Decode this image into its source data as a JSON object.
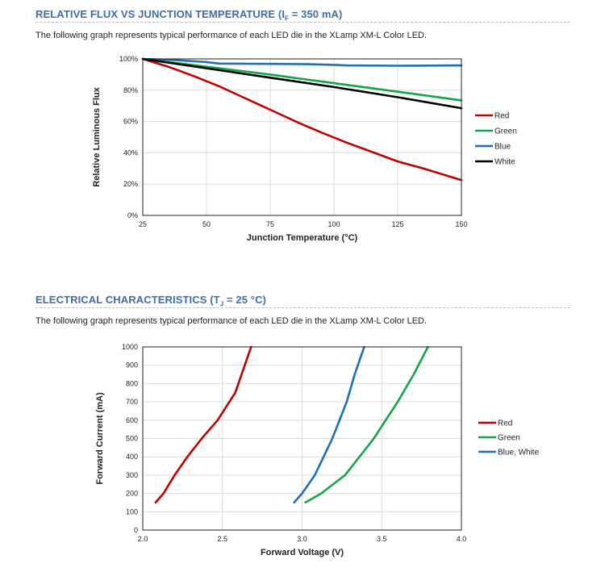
{
  "section1": {
    "title_prefix": "RELATIVE FLUX VS JUNCTION TEMPERATURE (I",
    "title_sub": "F",
    "title_suffix": " = 350 mA)",
    "description": "The following graph represents typical performance of each LED die in the XLamp XM-L Color LED."
  },
  "section2": {
    "title_prefix": "ELECTRICAL CHARACTERISTICS (T",
    "title_sub": "J",
    "title_suffix": " = 25 °C)",
    "description": "The following graph represents typical performance of each LED die in the XLamp XM-L Color LED."
  },
  "chart_data": [
    {
      "type": "line",
      "xlabel": "Junction Temperature (°C)",
      "ylabel": "Relative Luminous Flux",
      "xlim": [
        25,
        150
      ],
      "ylim": [
        0,
        100
      ],
      "xticks": [
        25,
        50,
        75,
        100,
        125,
        150
      ],
      "yticks": [
        0,
        20,
        40,
        60,
        80,
        100
      ],
      "ytick_labels": [
        "0%",
        "20%",
        "40%",
        "60%",
        "80%",
        "100%"
      ],
      "legend_position": "right",
      "series": [
        {
          "name": "Red",
          "color": "#c00000",
          "x": [
            25,
            35,
            45,
            55,
            65,
            75,
            85,
            95,
            105,
            115,
            125,
            135,
            150
          ],
          "values": [
            100,
            95,
            89,
            82.5,
            75,
            67.5,
            60,
            53,
            46.5,
            40.5,
            34.5,
            30,
            22.5
          ]
        },
        {
          "name": "Green",
          "color": "#16a34a",
          "x": [
            25,
            50,
            75,
            100,
            125,
            150
          ],
          "values": [
            100,
            95,
            90,
            84.5,
            79,
            73.5
          ]
        },
        {
          "name": "Blue",
          "color": "#1f6fb5",
          "x": [
            25,
            35,
            50,
            55,
            75,
            90,
            100,
            105,
            125,
            150
          ],
          "values": [
            100,
            99.5,
            98,
            97,
            96.8,
            96.6,
            96.2,
            95.8,
            95.6,
            95.8
          ]
        },
        {
          "name": "White",
          "color": "#000000",
          "x": [
            25,
            50,
            75,
            100,
            125,
            150
          ],
          "values": [
            100,
            94,
            88,
            82,
            75.5,
            68.5
          ]
        }
      ]
    },
    {
      "type": "line",
      "xlabel": "Forward Voltage (V)",
      "ylabel": "Forward Current (mA)",
      "xlim": [
        2.0,
        4.0
      ],
      "ylim": [
        0,
        1000
      ],
      "xticks": [
        2.0,
        2.5,
        3.0,
        3.5,
        4.0
      ],
      "xtick_labels": [
        "2.0",
        "2.5",
        "3.0",
        "3.5",
        "4.0"
      ],
      "yticks": [
        0,
        100,
        200,
        300,
        400,
        500,
        600,
        700,
        800,
        900,
        1000
      ],
      "legend_position": "right",
      "series": [
        {
          "name": "Red",
          "color": "#c00000",
          "x": [
            2.08,
            2.13,
            2.2,
            2.28,
            2.37,
            2.47,
            2.58,
            2.68
          ],
          "values": [
            150,
            200,
            300,
            400,
            500,
            600,
            750,
            1000
          ]
        },
        {
          "name": "Green",
          "color": "#16a34a",
          "x": [
            3.02,
            3.12,
            3.27,
            3.45,
            3.6,
            3.7,
            3.79
          ],
          "values": [
            150,
            200,
            300,
            500,
            700,
            850,
            1000
          ]
        },
        {
          "name": "Blue, White",
          "color": "#1f6fb5",
          "x": [
            2.95,
            3.0,
            3.08,
            3.19,
            3.28,
            3.33,
            3.39
          ],
          "values": [
            150,
            200,
            300,
            500,
            700,
            850,
            1000
          ]
        }
      ]
    }
  ]
}
